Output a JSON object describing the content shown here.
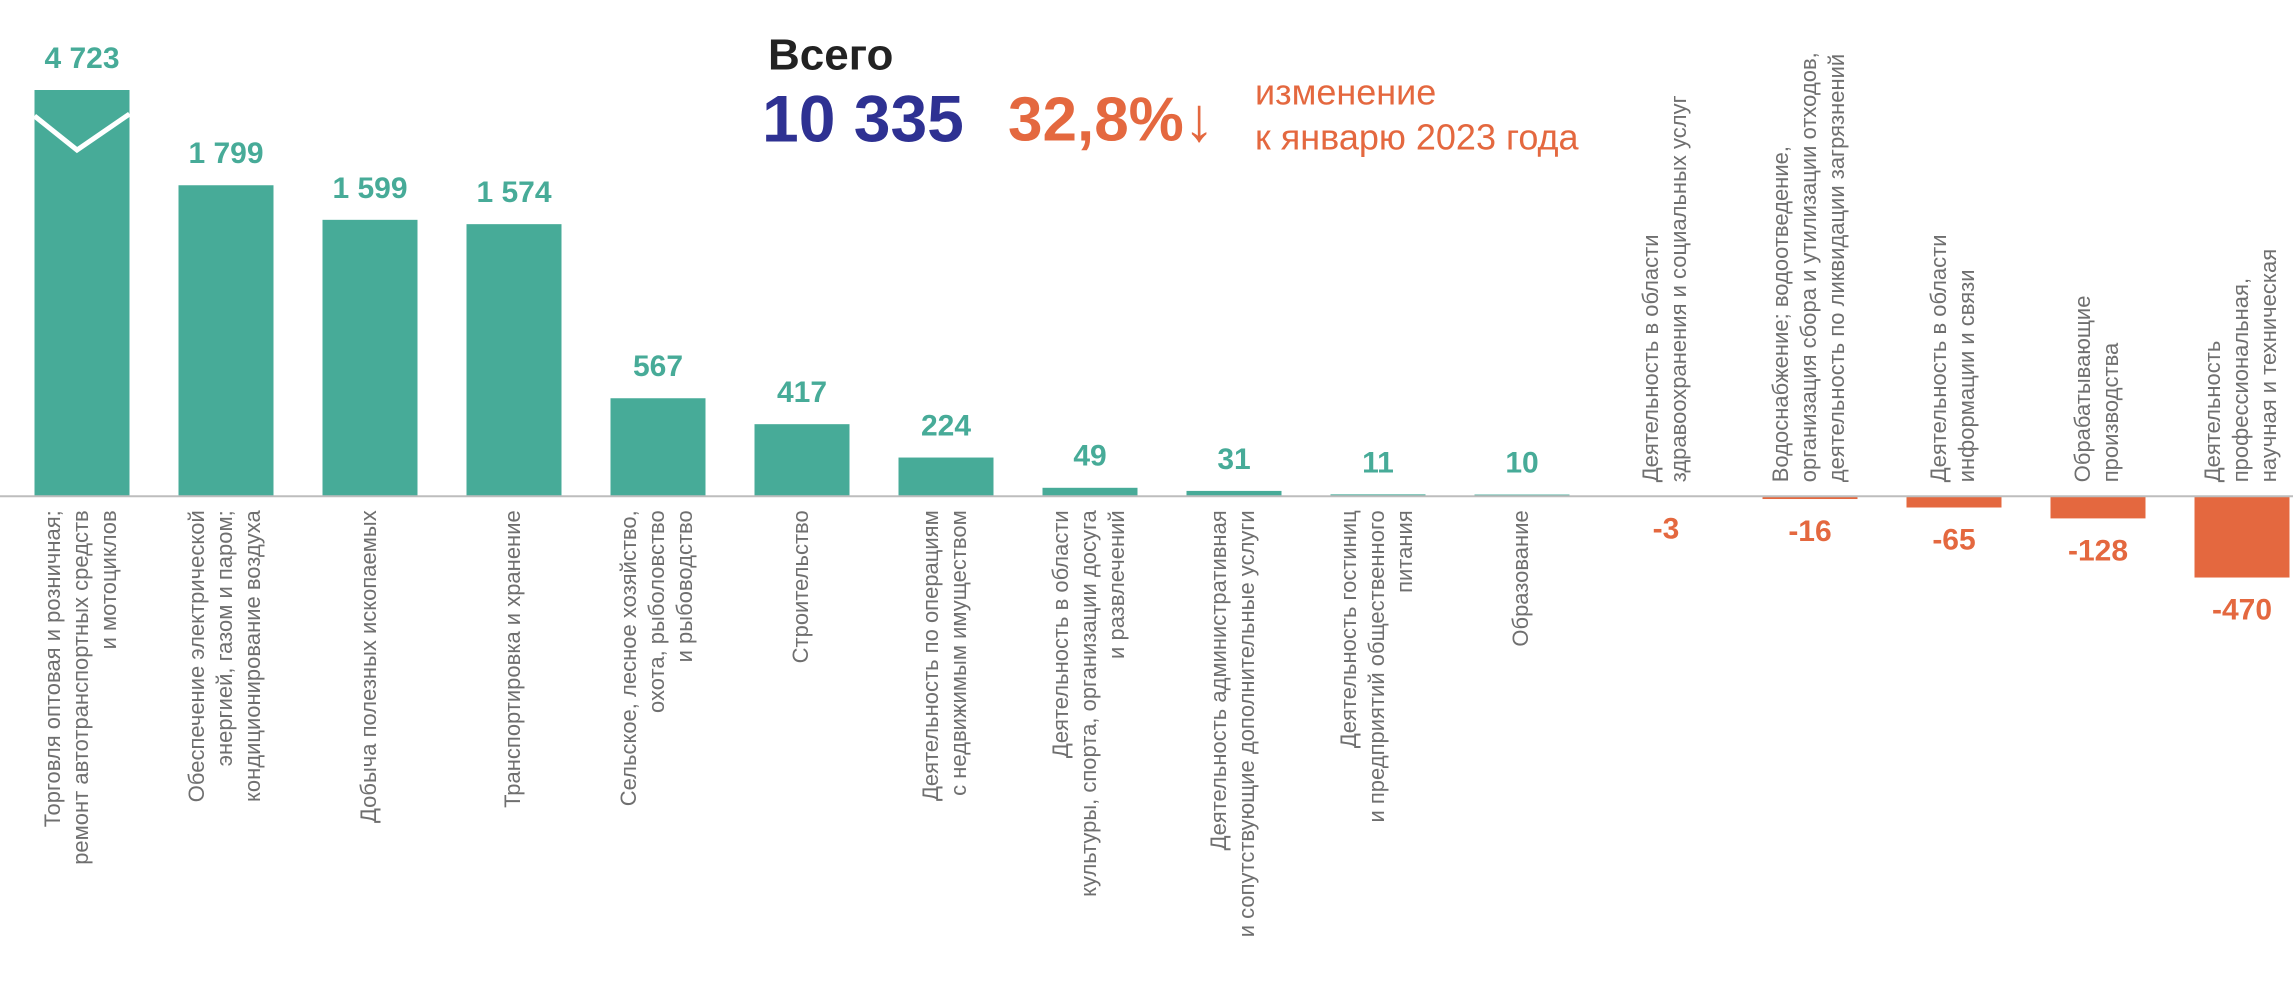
{
  "chart_data": {
    "type": "bar",
    "summary": {
      "title": "Всего",
      "total": "10 335",
      "change": "32,8%↓",
      "change_note": [
        "изменение",
        "к январю 2023 года"
      ]
    },
    "categories": [
      [
        "Торговля оптовая и розничная;",
        "ремонт автотранспортных средств",
        "и мотоциклов"
      ],
      [
        "Обеспечение электрической",
        "энергией, газом и паром;",
        "кондиционирование воздуха"
      ],
      [
        "Добыча полезных  ископаемых"
      ],
      [
        "Транспортировка и хранение"
      ],
      [
        "Сельское, лесное хозяйство,",
        "охота, рыболовство",
        "и рыбоводство"
      ],
      [
        "Строительство"
      ],
      [
        "Деятельность по операциям",
        "с недвижимым имуществом"
      ],
      [
        "Деятельность в области",
        "культуры, спорта, организации досуга",
        "и развлечений"
      ],
      [
        "Деятельность административная",
        "и сопутствующие дополнительные услуги"
      ],
      [
        "Деятельность  гостиниц",
        "и предприятий общественного",
        "питания"
      ],
      [
        "Образование"
      ],
      [
        "Деятельность в области",
        "здравоохранения и социальных услуг"
      ],
      [
        "Водоснабжение; водоотведение,",
        "организация сбора и утилизации отходов,",
        "деятельность по ликвидации загрязнений"
      ],
      [
        "Деятельность в области",
        "информации и связи"
      ],
      [
        "Обрабатывающие",
        "производства"
      ],
      [
        "Деятельность",
        "профессиональная,",
        "научная и техническая"
      ]
    ],
    "values": [
      4723,
      1799,
      1599,
      1574,
      567,
      417,
      224,
      49,
      31,
      11,
      10,
      -3,
      -16,
      -65,
      -128,
      -470
    ],
    "value_labels": [
      "4 723",
      "1 799",
      "1 599",
      "1 574",
      "567",
      "417",
      "224",
      "49",
      "31",
      "11",
      "10",
      "-3",
      "-16",
      "-65",
      "-128",
      "-470"
    ],
    "colors": {
      "positive": "#47ab98",
      "negative": "#e4683f"
    },
    "ylim": [
      -600,
      2350
    ]
  }
}
